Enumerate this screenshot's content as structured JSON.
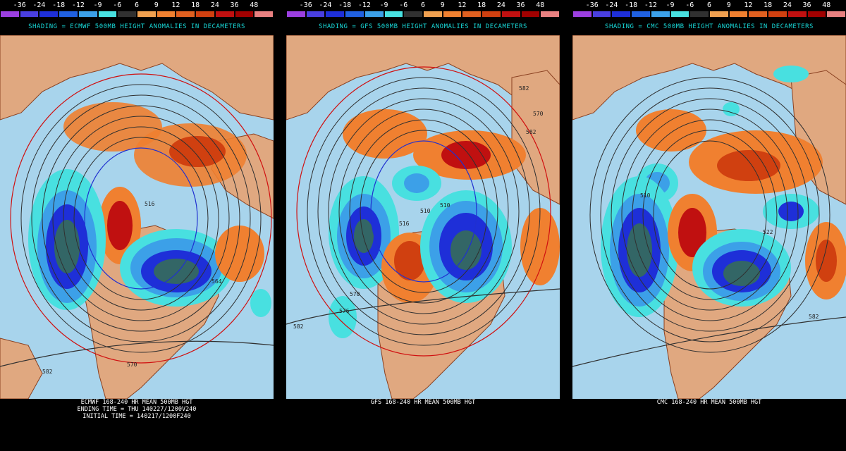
{
  "legend": {
    "ticks": [
      "-36",
      "-24",
      "-18",
      "-12",
      "-9",
      "-6",
      "6",
      "9",
      "12",
      "18",
      "24",
      "36",
      "48"
    ],
    "colors": [
      "#9b3fe0",
      "#4a3fe0",
      "#1e2fd8",
      "#2060e0",
      "#3ca0e8",
      "#48e0e0",
      "#303030",
      "#f0a050",
      "#f08030",
      "#e06020",
      "#d04010",
      "#c01010",
      "#a00000",
      "#e88080"
    ]
  },
  "panels": [
    {
      "title": "SHADING = ECMWF 500MB HEIGHT ANOMALIES IN DECAMETERS",
      "footer": [
        "ECMWF 168-240 HR MEAN 500MB HGT",
        "ENDING TIME = THU 140227/1200V240",
        "INITIAL TIME = 140217/1200F240"
      ],
      "labels": [
        "516",
        "570",
        "564",
        "582"
      ]
    },
    {
      "title": "SHADING = GFS 500MB HEIGHT ANOMALIES IN DECAMETERS",
      "footer": [
        "GFS 168-240 HR MEAN 500MB HGT"
      ],
      "labels": [
        "510",
        "510",
        "516",
        "582",
        "570",
        "582",
        "570",
        "576",
        "582"
      ]
    },
    {
      "title": "SHADING = CMC 500MB HEIGHT ANOMALIES IN DECAMETERS",
      "footer": [
        "CMC 168-240 HR MEAN 500MB HGT"
      ],
      "labels": [
        "510",
        "522",
        "582"
      ]
    }
  ],
  "colors": {
    "ocean": "#a8d4ec",
    "land": "#e0a880",
    "border": "#8a4020",
    "contour": "#303030",
    "cyan_title": "#18d6d6"
  }
}
